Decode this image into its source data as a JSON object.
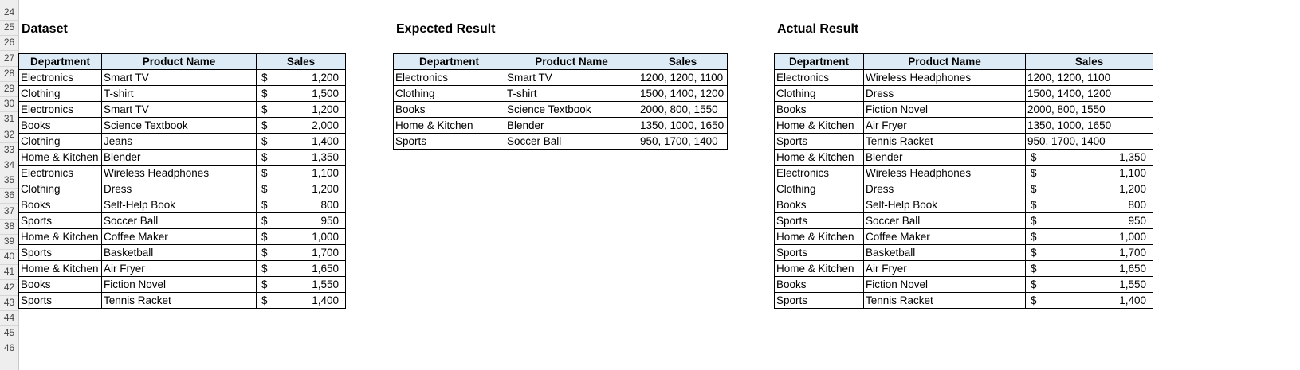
{
  "row_numbers": [
    "24",
    "25",
    "26",
    "27",
    "28",
    "29",
    "30",
    "31",
    "32",
    "33",
    "34",
    "35",
    "36",
    "37",
    "38",
    "39",
    "40",
    "41",
    "42",
    "43",
    "44",
    "45",
    "46"
  ],
  "dataset": {
    "title": "Dataset",
    "headers": [
      "Department",
      "Product Name",
      "Sales"
    ],
    "currency_symbol": "$",
    "rows": [
      [
        "Electronics",
        "Smart TV",
        "1,200"
      ],
      [
        "Clothing",
        "T-shirt",
        "1,500"
      ],
      [
        "Electronics",
        "Smart TV",
        "1,200"
      ],
      [
        "Books",
        "Science Textbook",
        "2,000"
      ],
      [
        "Clothing",
        "Jeans",
        "1,400"
      ],
      [
        "Home & Kitchen",
        "Blender",
        "1,350"
      ],
      [
        "Electronics",
        "Wireless Headphones",
        "1,100"
      ],
      [
        "Clothing",
        "Dress",
        "1,200"
      ],
      [
        "Books",
        "Self-Help Book",
        "800"
      ],
      [
        "Sports",
        "Soccer Ball",
        "950"
      ],
      [
        "Home & Kitchen",
        "Coffee Maker",
        "1,000"
      ],
      [
        "Sports",
        "Basketball",
        "1,700"
      ],
      [
        "Home & Kitchen",
        "Air Fryer",
        "1,650"
      ],
      [
        "Books",
        "Fiction Novel",
        "1,550"
      ],
      [
        "Sports",
        "Tennis Racket",
        "1,400"
      ]
    ]
  },
  "expected": {
    "title": "Expected Result",
    "headers": [
      "Department",
      "Product Name",
      "Sales"
    ],
    "rows": [
      [
        "Electronics",
        "Smart TV",
        "1200, 1200, 1100"
      ],
      [
        "Clothing",
        "T-shirt",
        "1500, 1400, 1200"
      ],
      [
        "Books",
        "Science Textbook",
        "2000, 800, 1550"
      ],
      [
        "Home & Kitchen",
        "Blender",
        "1350, 1000, 1650"
      ],
      [
        "Sports",
        "Soccer Ball",
        "950, 1700, 1400"
      ]
    ]
  },
  "actual": {
    "title": "Actual Result",
    "headers": [
      "Department",
      "Product Name",
      "Sales"
    ],
    "currency_symbol": "$",
    "rows": [
      [
        "Electronics",
        "Wireless Headphones",
        "1200, 1200, 1100"
      ],
      [
        "Clothing",
        "Dress",
        "1500, 1400, 1200"
      ],
      [
        "Books",
        "Fiction Novel",
        "2000, 800, 1550"
      ],
      [
        "Home & Kitchen",
        "Air Fryer",
        "1350, 1000, 1650"
      ],
      [
        "Sports",
        "Tennis Racket",
        "950, 1700, 1400"
      ],
      [
        "Home & Kitchen",
        "Blender",
        "1,350"
      ],
      [
        "Electronics",
        "Wireless Headphones",
        "1,100"
      ],
      [
        "Clothing",
        "Dress",
        "1,200"
      ],
      [
        "Books",
        "Self-Help Book",
        "800"
      ],
      [
        "Sports",
        "Soccer Ball",
        "950"
      ],
      [
        "Home & Kitchen",
        "Coffee Maker",
        "1,000"
      ],
      [
        "Sports",
        "Basketball",
        "1,700"
      ],
      [
        "Home & Kitchen",
        "Air Fryer",
        "1,650"
      ],
      [
        "Books",
        "Fiction Novel",
        "1,550"
      ],
      [
        "Sports",
        "Tennis Racket",
        "1,400"
      ]
    ]
  }
}
